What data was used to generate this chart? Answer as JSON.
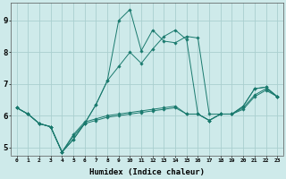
{
  "xlabel": "Humidex (Indice chaleur)",
  "background_color": "#ceeaea",
  "grid_color": "#aacfcf",
  "line_color": "#1a7a6e",
  "xlim": [
    -0.5,
    23.5
  ],
  "ylim": [
    4.75,
    9.55
  ],
  "xtick_labels": [
    "0",
    "1",
    "2",
    "3",
    "4",
    "5",
    "6",
    "7",
    "8",
    "9",
    "10",
    "11",
    "12",
    "13",
    "14",
    "15",
    "16",
    "17",
    "18",
    "19",
    "20",
    "21",
    "22",
    "23"
  ],
  "ytick_labels": [
    "5",
    "6",
    "7",
    "8",
    "9"
  ],
  "ytick_vals": [
    5,
    6,
    7,
    8,
    9
  ],
  "series": [
    [
      6.25,
      6.05,
      5.75,
      5.65,
      4.85,
      5.25,
      5.75,
      6.35,
      7.1,
      9.0,
      9.35,
      8.05,
      8.7,
      8.35,
      8.3,
      8.5,
      8.45,
      6.05,
      6.05,
      6.05,
      6.3,
      6.85,
      6.9,
      6.6
    ],
    [
      6.25,
      6.05,
      5.75,
      5.65,
      4.85,
      5.25,
      5.75,
      6.35,
      7.1,
      7.55,
      8.0,
      7.65,
      8.1,
      8.5,
      8.7,
      8.4,
      6.05,
      5.85,
      6.05,
      6.05,
      6.3,
      6.85,
      6.9,
      6.6
    ],
    [
      6.25,
      6.05,
      5.75,
      5.65,
      4.85,
      5.4,
      5.8,
      5.9,
      6.0,
      6.05,
      6.1,
      6.15,
      6.2,
      6.25,
      6.3,
      6.05,
      6.05,
      5.85,
      6.05,
      6.05,
      6.25,
      6.65,
      6.85,
      6.6
    ],
    [
      6.25,
      6.05,
      5.75,
      5.65,
      4.85,
      5.35,
      5.75,
      5.85,
      5.95,
      6.0,
      6.05,
      6.1,
      6.15,
      6.2,
      6.25,
      6.05,
      6.05,
      5.85,
      6.05,
      6.05,
      6.2,
      6.6,
      6.8,
      6.6
    ]
  ]
}
